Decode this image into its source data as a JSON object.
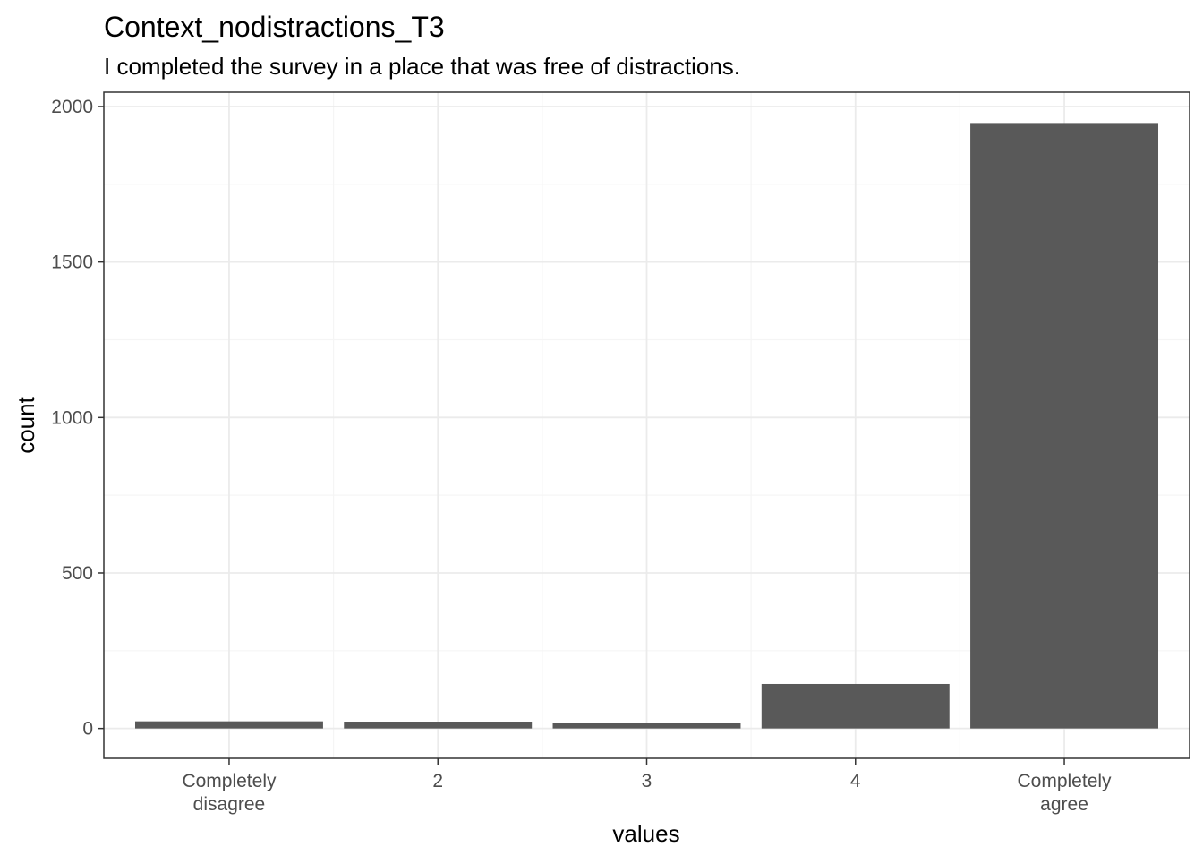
{
  "chart_data": {
    "type": "bar",
    "title": "Context_nodistractions_T3",
    "subtitle": "I completed the survey in a place that was free of distractions.",
    "xlabel": "values",
    "ylabel": "count",
    "categories": [
      [
        "Completely",
        "disagree"
      ],
      [
        "2"
      ],
      [
        "3"
      ],
      [
        "4"
      ],
      [
        "Completely",
        "agree"
      ]
    ],
    "values": [
      23,
      22,
      18,
      143,
      1947
    ],
    "ylim": [
      -96,
      2046
    ],
    "yticks": [
      0,
      500,
      1000,
      1500,
      2000
    ],
    "grid": true,
    "legend": "none",
    "colors": {
      "bar": "#595959",
      "panel_border": "#333333",
      "grid_major": "#ebebeb",
      "grid_minor": "#f5f5f5",
      "tick_text": "#4d4d4d",
      "text": "#000000"
    }
  }
}
